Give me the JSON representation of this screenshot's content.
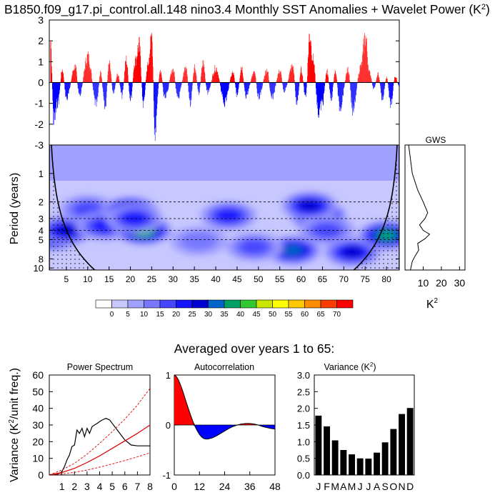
{
  "title": "B1850.f09_g17.pi_control.all.148 nino3.4 Monthly SST Anomalies + Wavelet Power (K",
  "title_sup": "2",
  "title_close": ")",
  "colors": {
    "positive": "#ff0000",
    "negative": "#0000ff",
    "line": "#000000",
    "red_line": "#e00000"
  },
  "chart_data": [
    {
      "id": "timeseries",
      "type": "bar",
      "y_ticks": [
        "3",
        "2",
        "1",
        "0",
        "-1",
        "-2",
        "-3"
      ],
      "ylim": [
        -3,
        3
      ],
      "xlim": [
        1,
        83
      ],
      "peaks": [
        {
          "x": 1.2,
          "y": 3.0
        },
        {
          "x": 2,
          "y": -2.4
        },
        {
          "x": 3,
          "y": -1.2
        },
        {
          "x": 4,
          "y": 0.8
        },
        {
          "x": 5,
          "y": -1.0
        },
        {
          "x": 7,
          "y": 1.0
        },
        {
          "x": 8,
          "y": -0.8
        },
        {
          "x": 10,
          "y": 1.6
        },
        {
          "x": 12,
          "y": -1.4
        },
        {
          "x": 13,
          "y": 0.6
        },
        {
          "x": 14,
          "y": -1.6
        },
        {
          "x": 15,
          "y": 1.1
        },
        {
          "x": 16,
          "y": -0.6
        },
        {
          "x": 17,
          "y": 0.5
        },
        {
          "x": 18,
          "y": -0.8
        },
        {
          "x": 19,
          "y": 1.4
        },
        {
          "x": 20,
          "y": -1.2
        },
        {
          "x": 21,
          "y": 1.3
        },
        {
          "x": 22,
          "y": 2.3
        },
        {
          "x": 23,
          "y": -1.3
        },
        {
          "x": 24,
          "y": 1.0
        },
        {
          "x": 25,
          "y": 2.9
        },
        {
          "x": 25.7,
          "y": -3.0
        },
        {
          "x": 27,
          "y": 0.8
        },
        {
          "x": 28,
          "y": -1.0
        },
        {
          "x": 30,
          "y": 0.8
        },
        {
          "x": 31,
          "y": -1.0
        },
        {
          "x": 33,
          "y": 0.9
        },
        {
          "x": 34,
          "y": -1.3
        },
        {
          "x": 35,
          "y": 1.0
        },
        {
          "x": 36,
          "y": -0.6
        },
        {
          "x": 37,
          "y": 1.2
        },
        {
          "x": 38,
          "y": -0.6
        },
        {
          "x": 40,
          "y": 0.9
        },
        {
          "x": 42,
          "y": -1.2
        },
        {
          "x": 44,
          "y": 0.6
        },
        {
          "x": 45,
          "y": -0.8
        },
        {
          "x": 46,
          "y": 1.0
        },
        {
          "x": 47,
          "y": -0.8
        },
        {
          "x": 49,
          "y": 0.6
        },
        {
          "x": 50,
          "y": -0.9
        },
        {
          "x": 52,
          "y": 0.8
        },
        {
          "x": 53,
          "y": -1.0
        },
        {
          "x": 55,
          "y": 0.7
        },
        {
          "x": 56,
          "y": -0.5
        },
        {
          "x": 58,
          "y": 1.0
        },
        {
          "x": 59,
          "y": -1.3
        },
        {
          "x": 60,
          "y": 0.8
        },
        {
          "x": 61,
          "y": -0.9
        },
        {
          "x": 62,
          "y": 3.0
        },
        {
          "x": 62.8,
          "y": 1.4
        },
        {
          "x": 64,
          "y": -1.8
        },
        {
          "x": 65,
          "y": -1.2
        },
        {
          "x": 66,
          "y": 0.7
        },
        {
          "x": 67,
          "y": -1.0
        },
        {
          "x": 68,
          "y": 0.7
        },
        {
          "x": 69,
          "y": -1.5
        },
        {
          "x": 71,
          "y": 0.8
        },
        {
          "x": 72,
          "y": -1.6
        },
        {
          "x": 74,
          "y": 1.0
        },
        {
          "x": 75,
          "y": 2.8
        },
        {
          "x": 76,
          "y": 0.6
        },
        {
          "x": 77,
          "y": -0.4
        },
        {
          "x": 78,
          "y": 0.5
        },
        {
          "x": 79,
          "y": -1.0
        },
        {
          "x": 80,
          "y": 0.3
        },
        {
          "x": 81,
          "y": -1.4
        },
        {
          "x": 82,
          "y": 0.4
        },
        {
          "x": 83,
          "y": -0.3
        }
      ]
    },
    {
      "id": "wavelet",
      "type": "heatmap",
      "ylabel": "Period (years)",
      "y_ticks": [
        "1",
        "2",
        "3",
        "4",
        "5",
        "8",
        "10"
      ],
      "y_tick_values": [
        1,
        2,
        3,
        4,
        5,
        8,
        10
      ],
      "x_ticks": [
        "5",
        "10",
        "15",
        "20",
        "25",
        "30",
        "35",
        "40",
        "45",
        "50",
        "55",
        "60",
        "65",
        "70",
        "75",
        "80"
      ],
      "x_tick_values": [
        5,
        10,
        15,
        20,
        25,
        30,
        35,
        40,
        45,
        50,
        55,
        60,
        65,
        70,
        75,
        80
      ],
      "xlim": [
        1,
        83
      ],
      "ylim": [
        0.5,
        10.5
      ],
      "dashed_periods": [
        2,
        3,
        4,
        5
      ],
      "legend_ticks": [
        "0",
        "5",
        "10",
        "15",
        "20",
        "25",
        "30",
        "35",
        "40",
        "45",
        "50",
        "55",
        "60",
        "65",
        "70"
      ],
      "legend_colors": [
        "#ffffff",
        "#c8c8ff",
        "#a0a0ff",
        "#7878ff",
        "#4646ff",
        "#1414ff",
        "#0000d2",
        "#0064c8",
        "#00a064",
        "#32c832",
        "#c8e600",
        "#ffff00",
        "#ffc800",
        "#ff8c00",
        "#ff3c00",
        "#ff0000"
      ],
      "blobs": [
        {
          "x": 2,
          "y": 4.6,
          "level": 7
        },
        {
          "x": 5,
          "y": 4.0,
          "level": 5
        },
        {
          "x": 10,
          "y": 2.4,
          "level": 3
        },
        {
          "x": 14,
          "y": 3.6,
          "level": 4
        },
        {
          "x": 20,
          "y": 2.5,
          "level": 7
        },
        {
          "x": 23,
          "y": 4.0,
          "level": 8
        },
        {
          "x": 21,
          "y": 3.0,
          "level": 4
        },
        {
          "x": 43,
          "y": 2.8,
          "level": 4
        },
        {
          "x": 64,
          "y": 2.8,
          "level": 8
        },
        {
          "x": 62,
          "y": 2.2,
          "level": 5
        },
        {
          "x": 58,
          "y": 6.5,
          "level": 6
        },
        {
          "x": 72,
          "y": 6.8,
          "level": 5
        },
        {
          "x": 80,
          "y": 4.5,
          "level": 7
        },
        {
          "x": 49,
          "y": 6.0,
          "level": 3
        },
        {
          "x": 36,
          "y": 5.2,
          "level": 2
        },
        {
          "x": 66,
          "y": 4.0,
          "level": 3
        }
      ]
    },
    {
      "id": "gws",
      "type": "line",
      "title": "GWS",
      "x_ticks": [
        "10",
        "20",
        "30"
      ],
      "xlabel": "K",
      "xlabel_sup": "2",
      "xlim": [
        0,
        33
      ],
      "points": [
        {
          "period": 0.5,
          "value": 2
        },
        {
          "period": 1.0,
          "value": 4
        },
        {
          "period": 1.5,
          "value": 7
        },
        {
          "period": 2.0,
          "value": 10
        },
        {
          "period": 2.6,
          "value": 12.5
        },
        {
          "period": 3.0,
          "value": 11
        },
        {
          "period": 3.5,
          "value": 8
        },
        {
          "period": 4.0,
          "value": 10
        },
        {
          "period": 4.4,
          "value": 13.5
        },
        {
          "period": 4.9,
          "value": 11
        },
        {
          "period": 5.5,
          "value": 7
        },
        {
          "period": 6.5,
          "value": 7.5
        },
        {
          "period": 7.5,
          "value": 5.5
        },
        {
          "period": 8.5,
          "value": 4
        },
        {
          "period": 10.5,
          "value": 3
        }
      ]
    },
    {
      "id": "power_spectrum",
      "type": "line",
      "title": "Power Spectrum",
      "ylabel": "Variance (K",
      "ylabel_sup": "2",
      "ylabel_rest": "/unit freq.)",
      "y_ticks": [
        "60",
        "50",
        "40",
        "30",
        "20",
        "10",
        "0"
      ],
      "x_ticks": [
        "1",
        "2",
        "3",
        "4",
        "5",
        "6",
        "7",
        "8"
      ],
      "xlim": [
        0,
        8
      ],
      "ylim": [
        0,
        60
      ],
      "series": [
        {
          "x": [
            0.2,
            0.5,
            0.8,
            1.0,
            1.2,
            1.4,
            1.6,
            1.8,
            2.0,
            2.2,
            2.4,
            2.6,
            2.8,
            3.0,
            3.2,
            3.4,
            3.6,
            3.8,
            4.0,
            4.2,
            4.5,
            4.8,
            5.0,
            5.5,
            6.0,
            6.5,
            7.0,
            7.5,
            8.0
          ],
          "y": [
            0.0,
            0.5,
            1.0,
            2.0,
            5.0,
            9.0,
            12.0,
            17.0,
            18.0,
            27.0,
            25.0,
            28.0,
            23.0,
            28.0,
            25.0,
            29.0,
            30.0,
            31.0,
            32.0,
            33.0,
            34.0,
            33.0,
            31.0,
            26.0,
            21.0,
            18.0,
            17.5,
            17.5,
            17.5
          ]
        },
        {
          "x": [
            0,
            1,
            2,
            3,
            4,
            5,
            6,
            7,
            8
          ],
          "y": [
            0,
            1.5,
            4,
            7.5,
            11.5,
            16,
            20.5,
            25,
            30
          ]
        },
        {
          "x": [
            0,
            1,
            2,
            3,
            4,
            5,
            6,
            7,
            8
          ],
          "y": [
            0,
            3,
            7,
            12.5,
            19,
            26,
            33.5,
            42,
            52
          ]
        },
        {
          "x": [
            0,
            1,
            2,
            3,
            4,
            5,
            6,
            7,
            8
          ],
          "y": [
            0,
            0.6,
            1.6,
            3,
            4.7,
            6.6,
            8.7,
            10.9,
            13.3
          ]
        }
      ]
    },
    {
      "id": "autocorrelation",
      "type": "area",
      "title": "Autocorrelation",
      "y_ticks": [
        "1",
        "0",
        "-1"
      ],
      "x_ticks": [
        "0",
        "12",
        "24",
        "36",
        "48"
      ],
      "xlim": [
        0,
        48
      ],
      "ylim": [
        -1,
        1
      ],
      "x": [
        0,
        1,
        2,
        3,
        4,
        5,
        6,
        7,
        8,
        9,
        10,
        11,
        12,
        13,
        14,
        15,
        16,
        18,
        20,
        22,
        24,
        26,
        28,
        30,
        32,
        34,
        36,
        38,
        40,
        42,
        44,
        46,
        48
      ],
      "y": [
        1.0,
        0.97,
        0.9,
        0.8,
        0.68,
        0.55,
        0.42,
        0.29,
        0.17,
        0.06,
        -0.04,
        -0.12,
        -0.19,
        -0.24,
        -0.27,
        -0.28,
        -0.28,
        -0.26,
        -0.22,
        -0.17,
        -0.12,
        -0.07,
        -0.03,
        0.0,
        0.02,
        0.03,
        0.03,
        0.02,
        0.0,
        -0.03,
        -0.05,
        -0.07,
        -0.08
      ]
    },
    {
      "id": "variance",
      "type": "bar",
      "title": "Variance (K",
      "title_sup": "2",
      "title_close": ")",
      "y_ticks": [
        "3.0",
        "2.5",
        "2.0",
        "1.5",
        "1.0",
        "0.5",
        "0.0"
      ],
      "ylim": [
        0,
        3
      ],
      "categories": [
        "J",
        "F",
        "M",
        "A",
        "M",
        "J",
        "J",
        "A",
        "S",
        "O",
        "N",
        "D"
      ],
      "values": [
        1.78,
        1.46,
        1.04,
        0.75,
        0.62,
        0.5,
        0.49,
        0.67,
        0.98,
        1.38,
        1.83,
        2.01
      ]
    }
  ],
  "averaged_label": "Averaged over years 1 to 65:"
}
